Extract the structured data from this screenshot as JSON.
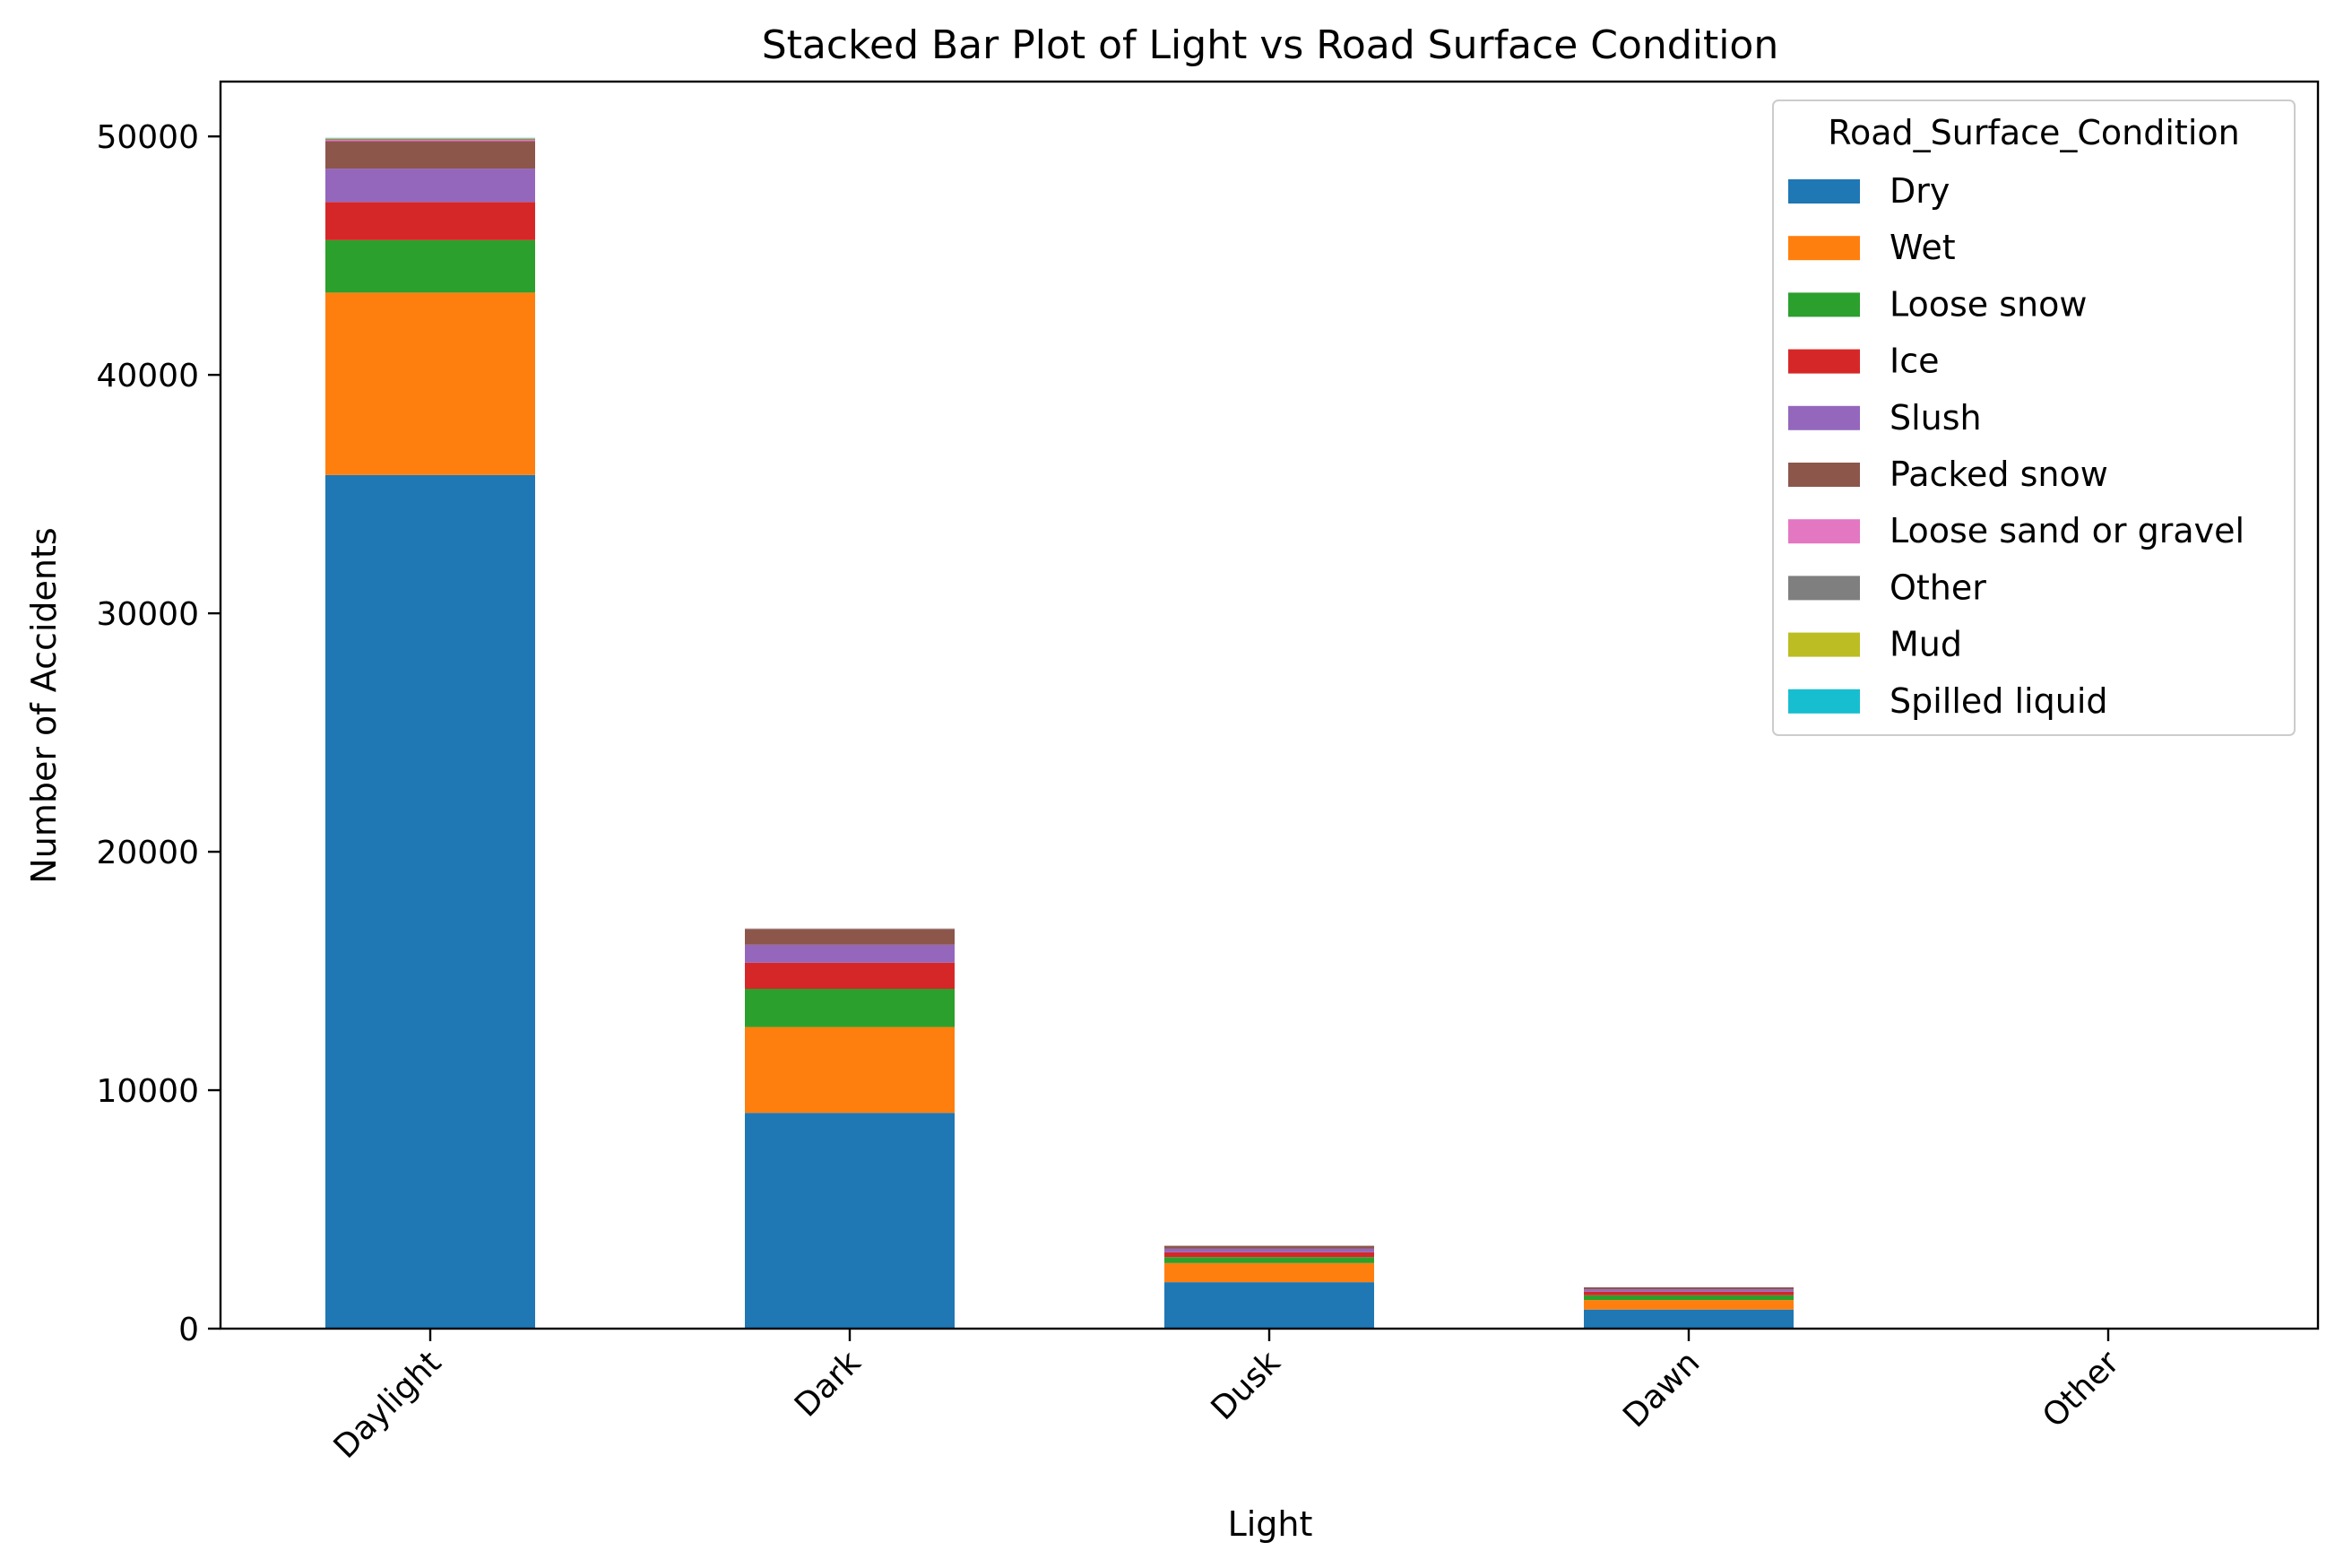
{
  "chart_data": {
    "type": "bar",
    "stacked": true,
    "title": "Stacked Bar Plot of Light vs Road Surface Condition",
    "xlabel": "Light",
    "ylabel": "Number of Accidents",
    "categories": [
      "Daylight",
      "Dark",
      "Dusk",
      "Dawn",
      "Other"
    ],
    "ylim": [
      0,
      52300
    ],
    "yticks": [
      0,
      10000,
      20000,
      30000,
      40000,
      50000
    ],
    "ytick_labels": [
      "0",
      "10000",
      "20000",
      "30000",
      "40000",
      "50000"
    ],
    "grid": false,
    "legend": {
      "title": "Road_Surface_Condition",
      "placement": "top-right"
    },
    "series": [
      {
        "name": "Dry",
        "color": "#1f77b4",
        "values": [
          35800,
          9050,
          1950,
          800,
          10
        ]
      },
      {
        "name": "Wet",
        "color": "#ff7f0e",
        "values": [
          7650,
          3600,
          800,
          400,
          3
        ]
      },
      {
        "name": "Loose snow",
        "color": "#2ca02c",
        "values": [
          2200,
          1600,
          250,
          200,
          1
        ]
      },
      {
        "name": "Ice",
        "color": "#d62728",
        "values": [
          1600,
          1100,
          200,
          150,
          1
        ]
      },
      {
        "name": "Slush",
        "color": "#9467bd",
        "values": [
          1400,
          750,
          150,
          100,
          0
        ]
      },
      {
        "name": "Packed snow",
        "color": "#8c564b",
        "values": [
          1150,
          650,
          120,
          80,
          0
        ]
      },
      {
        "name": "Loose sand or gravel",
        "color": "#e377c2",
        "values": [
          60,
          15,
          5,
          3,
          0
        ]
      },
      {
        "name": "Other",
        "color": "#7f7f7f",
        "values": [
          40,
          10,
          4,
          2,
          0
        ]
      },
      {
        "name": "Mud",
        "color": "#bcbd22",
        "values": [
          25,
          8,
          3,
          2,
          0
        ]
      },
      {
        "name": "Spilled liquid",
        "color": "#17becf",
        "values": [
          15,
          5,
          2,
          1,
          0
        ]
      }
    ]
  }
}
